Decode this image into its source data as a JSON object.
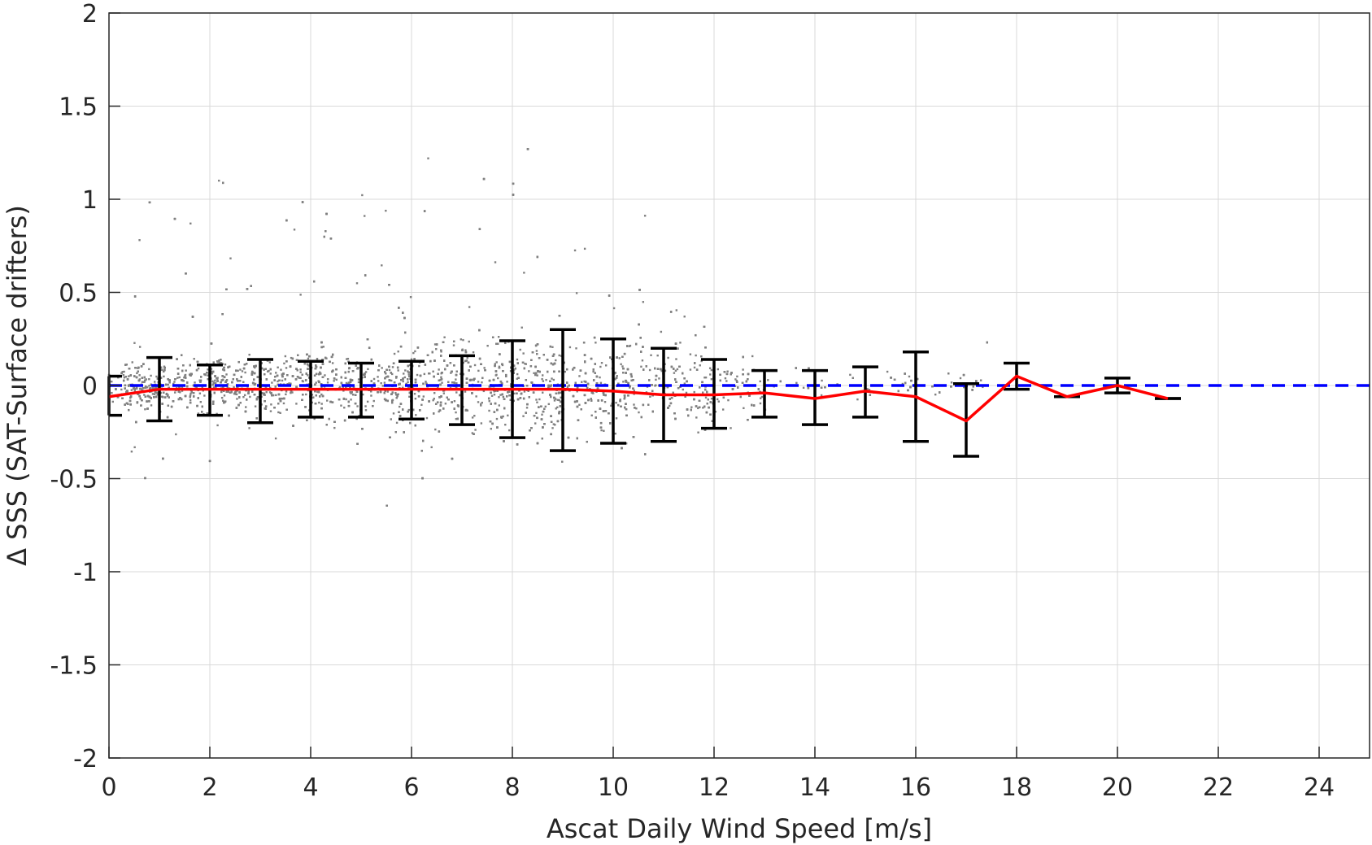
{
  "chart_data": {
    "type": "scatter",
    "xlabel": "Ascat Daily Wind Speed [m/s]",
    "ylabel": "Δ SSS (SAT-Surface drifters)",
    "xlim": [
      0,
      25
    ],
    "ylim": [
      -2,
      2
    ],
    "x_ticks": [
      0,
      2,
      4,
      6,
      8,
      10,
      12,
      14,
      16,
      18,
      20,
      22,
      24
    ],
    "y_ticks": [
      2,
      1.5,
      1,
      0.5,
      0,
      -0.5,
      -1,
      -1.5,
      -2
    ],
    "y_tick_labels": [
      "2",
      "1.5",
      "1",
      "0.5",
      "0",
      "-0.5",
      "-1",
      "-1.5",
      "-2"
    ],
    "grid": true,
    "reference_line": {
      "y": 0,
      "style": "dashed",
      "color": "#0000ff"
    },
    "scatter_color": "#808080",
    "series": [
      {
        "type": "line",
        "color": "#ff0000",
        "x": [
          0,
          1,
          2,
          3,
          4,
          5,
          6,
          7,
          8,
          9,
          10,
          11,
          12,
          13,
          14,
          15,
          16,
          17,
          18,
          19,
          20,
          21
        ],
        "y": [
          -0.06,
          -0.02,
          -0.02,
          -0.02,
          -0.02,
          -0.02,
          -0.02,
          -0.02,
          -0.02,
          -0.02,
          -0.03,
          -0.05,
          -0.05,
          -0.04,
          -0.07,
          -0.03,
          -0.06,
          -0.19,
          0.05,
          -0.06,
          0.0,
          -0.07
        ]
      },
      {
        "type": "errorbar",
        "color": "#000000",
        "x": [
          0,
          1,
          2,
          3,
          4,
          5,
          6,
          7,
          8,
          9,
          10,
          11,
          12,
          13,
          14,
          15,
          16,
          17,
          18,
          19,
          20,
          21
        ],
        "lower": [
          -0.16,
          -0.19,
          -0.16,
          -0.2,
          -0.17,
          -0.17,
          -0.18,
          -0.21,
          -0.28,
          -0.35,
          -0.31,
          -0.3,
          -0.23,
          -0.17,
          -0.21,
          -0.17,
          -0.3,
          -0.38,
          -0.02,
          -0.06,
          -0.04,
          -0.07
        ],
        "upper": [
          0.05,
          0.15,
          0.11,
          0.14,
          0.13,
          0.12,
          0.13,
          0.16,
          0.24,
          0.3,
          0.25,
          0.2,
          0.14,
          0.08,
          0.08,
          0.1,
          0.18,
          0.01,
          0.12,
          -0.06,
          0.04,
          -0.07
        ]
      }
    ]
  }
}
